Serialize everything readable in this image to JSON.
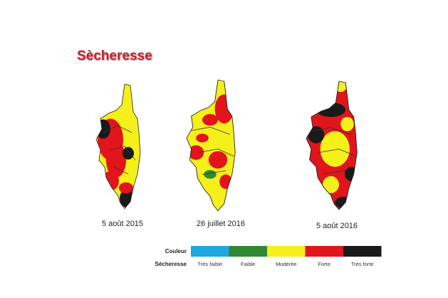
{
  "title": "Sècheresse",
  "maps": [
    {
      "date": "5 août 2015"
    },
    {
      "date": "26 juillet 2016"
    },
    {
      "date": "5 août 2016"
    }
  ],
  "legend": {
    "color_label": "Couleur",
    "level_label": "Sècheresse",
    "levels": [
      {
        "label": "Très faible",
        "color": "#1fa7e0"
      },
      {
        "label": "Faible",
        "color": "#2f8a32"
      },
      {
        "label": "Modérée",
        "color": "#f5ef1a"
      },
      {
        "label": "Forte",
        "color": "#e2141c"
      },
      {
        "label": "Très forte",
        "color": "#1a1a1a"
      }
    ]
  }
}
